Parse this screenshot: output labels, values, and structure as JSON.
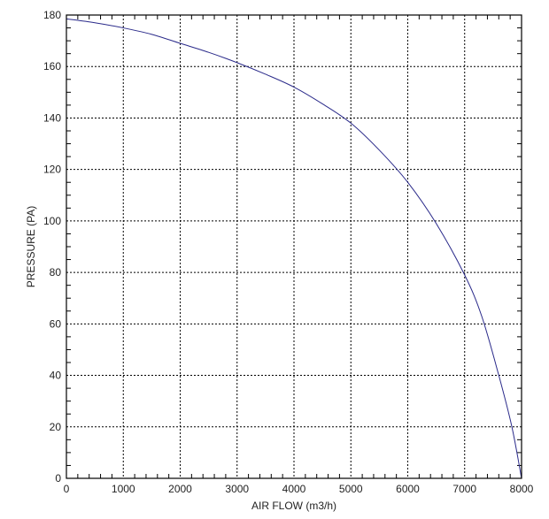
{
  "chart_data": {
    "type": "line",
    "title": "",
    "xlabel": "AIR FLOW (m3/h)",
    "ylabel": "PRESSURE (PA)",
    "xlim": [
      0,
      8000
    ],
    "ylim": [
      0,
      180
    ],
    "xticks": [
      0,
      1000,
      2000,
      3000,
      4000,
      5000,
      6000,
      7000,
      8000
    ],
    "yticks": [
      0,
      20,
      40,
      60,
      80,
      100,
      120,
      140,
      160,
      180
    ],
    "grid": true,
    "line_color": "#2a2a8a",
    "series": [
      {
        "x": [
          0,
          500,
          1000,
          1500,
          2000,
          2500,
          3000,
          3500,
          4000,
          4500,
          5000,
          5500,
          6000,
          6500,
          7000,
          7300,
          7600,
          7830,
          8000
        ],
        "values": [
          178.5,
          177,
          175,
          172.5,
          169,
          165.5,
          161.5,
          157,
          152,
          145.5,
          138,
          127.5,
          115,
          99,
          79,
          63,
          40,
          20,
          0
        ]
      }
    ]
  }
}
